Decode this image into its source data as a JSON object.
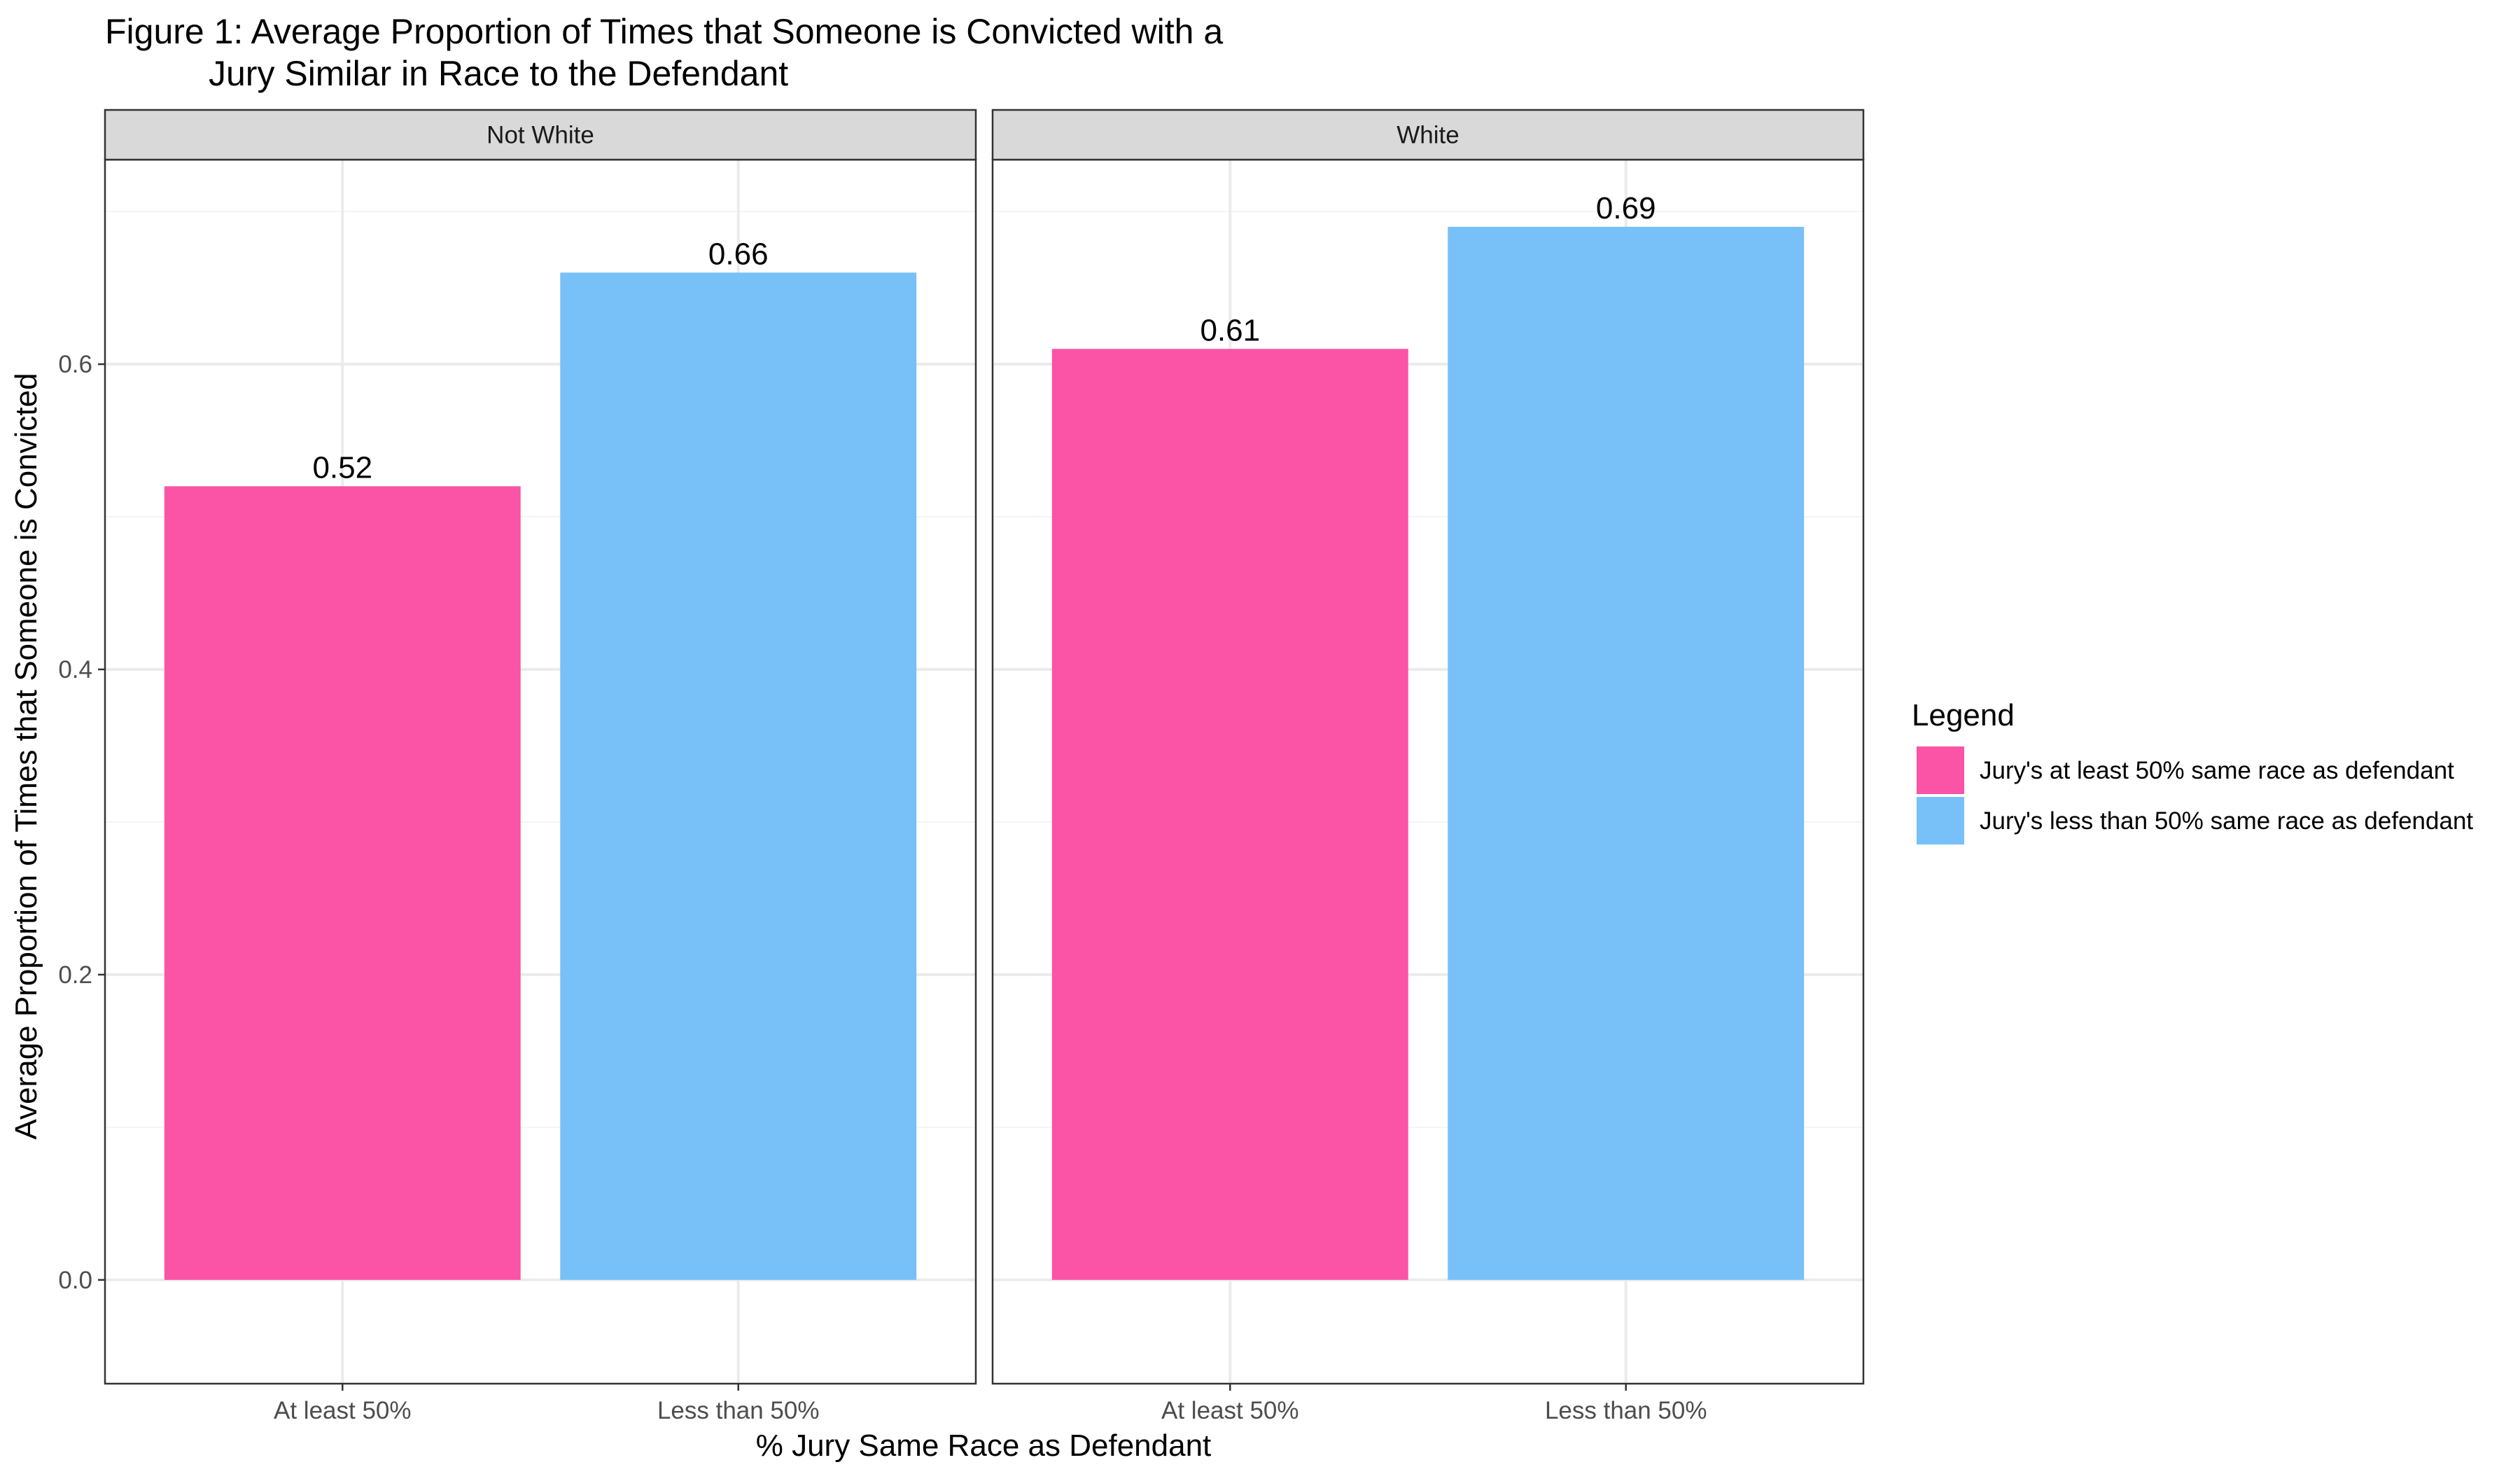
{
  "chart_data": {
    "type": "bar",
    "title_line1": "Figure 1: Average Proportion of Times that Someone is Convicted with a",
    "title_line2": "Jury Similar in Race to the Defendant",
    "xlabel": "% Jury Same Race as Defendant",
    "ylabel": "Average Proportion of Times that Someone is Convicted",
    "ylim": [
      -0.068,
      0.734
    ],
    "y_ticks": [
      0.0,
      0.2,
      0.4,
      0.6
    ],
    "y_tick_labels": [
      "0.0",
      "0.2",
      "0.4",
      "0.6"
    ],
    "y_minor_ticks": [
      0.1,
      0.3,
      0.5,
      0.7
    ],
    "categories": [
      "At least 50%",
      "Less than 50%"
    ],
    "grid": true,
    "legend": {
      "title": "Legend",
      "position": "right",
      "entries": [
        {
          "label": "Jury's at least 50% same race as defendant",
          "color": "#FB53A6"
        },
        {
          "label": "Jury's less than 50% same race as defendant",
          "color": "#77C1F8"
        }
      ]
    },
    "panels": [
      {
        "name": "Not White",
        "values": [
          0.52,
          0.66
        ],
        "labels": [
          "0.52",
          "0.66"
        ]
      },
      {
        "name": "White",
        "values": [
          0.61,
          0.69
        ],
        "labels": [
          "0.61",
          "0.69"
        ]
      }
    ],
    "colors": {
      "bar_at_least": "#FB53A6",
      "bar_less_than": "#77C1F8",
      "strip_fill": "#D9D9D9",
      "grid_major": "#EBEBEB",
      "grid_minor": "#F4F4F4",
      "panel_border": "#333333",
      "axis_text": "#4D4D4D"
    }
  }
}
